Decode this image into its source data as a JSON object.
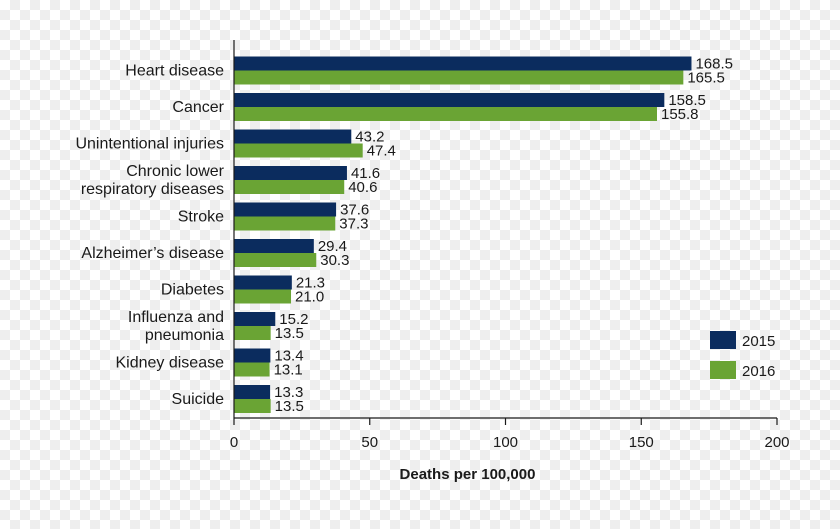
{
  "chart_data": {
    "type": "bar",
    "orientation": "horizontal",
    "categories": [
      [
        "Heart disease"
      ],
      [
        "Cancer"
      ],
      [
        "Unintentional injuries"
      ],
      [
        "Chronic lower",
        "respiratory diseases"
      ],
      [
        "Stroke"
      ],
      [
        "Alzheimer’s  disease"
      ],
      [
        "Diabetes"
      ],
      [
        "Influenza and",
        "pneumonia"
      ],
      [
        "Kidney disease"
      ],
      [
        "Suicide"
      ]
    ],
    "series": [
      {
        "name": "2015",
        "color": "#0b2c5e",
        "values": [
          168.5,
          158.5,
          43.2,
          41.6,
          37.6,
          29.4,
          21.3,
          15.2,
          13.4,
          13.3
        ],
        "labels": [
          "168.5",
          "158.5",
          "43.2",
          "41.6",
          "37.6",
          "29.4",
          "21.3",
          "15.2",
          "13.4",
          "13.3"
        ]
      },
      {
        "name": "2016",
        "color": "#6aa434",
        "values": [
          165.5,
          155.8,
          47.4,
          40.6,
          37.3,
          30.3,
          21.0,
          13.5,
          13.1,
          13.5
        ],
        "labels": [
          "165.5",
          "155.8",
          "47.4",
          "40.6",
          "37.3",
          "30.3",
          "21.0",
          "13.5",
          "13.1",
          "13.5"
        ]
      }
    ],
    "xlabel": "Deaths per 100,000",
    "xlim": [
      0,
      200
    ],
    "xticks": [
      0,
      50,
      100,
      150,
      200
    ],
    "xtick_labels": [
      "0",
      "50",
      "100",
      "150",
      "200"
    ],
    "legend_position": "bottom-right",
    "grid": false
  }
}
